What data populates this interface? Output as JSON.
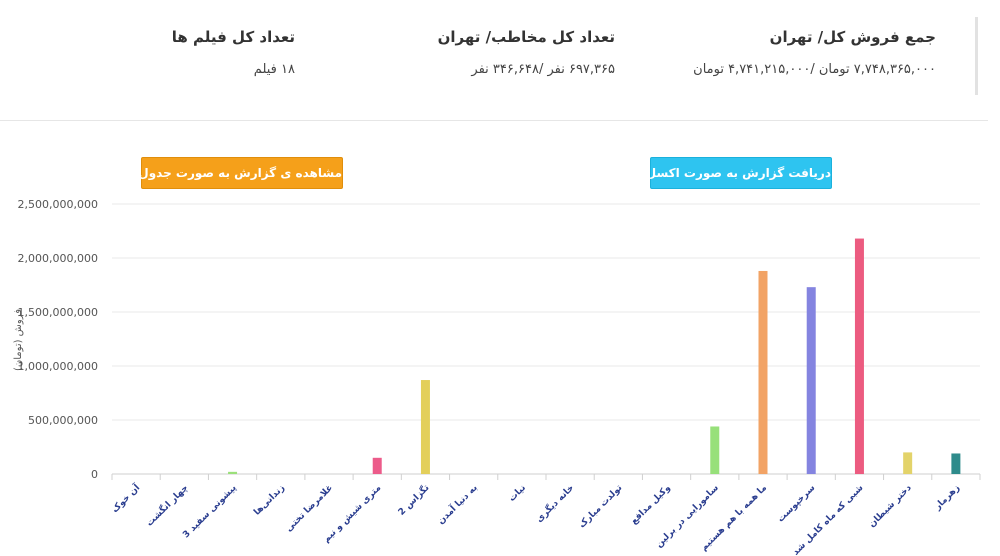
{
  "stats": {
    "sales": {
      "title": "جمع فروش کل/ تهران",
      "value": "۷,۷۴۸,۳۶۵,۰۰۰ تومان /۴,۷۴۱,۲۱۵,۰۰۰ تومان"
    },
    "audience": {
      "title": "تعداد کل مخاطب/ تهران",
      "value": "۶۹۷,۳۶۵ نفر /۳۴۶,۶۴۸ نفر"
    },
    "films": {
      "title": "تعداد کل فیلم ها",
      "value": "۱۸ فیلم"
    }
  },
  "buttons": {
    "excel": "دریافت گزارش به صورت اکسل",
    "table": "مشاهده ی گزارش به صورت جدول"
  },
  "chart_data": {
    "type": "bar",
    "ylabel": "فروش (تومان)",
    "ylim": [
      0,
      2500000000
    ],
    "yticks": [
      "0",
      "500,000,000",
      "1,000,000,000",
      "1,500,000,000",
      "2,000,000,000",
      "2,500,000,000"
    ],
    "ytick_values": [
      0,
      500000000,
      1000000000,
      1500000000,
      2000000000,
      2500000000
    ],
    "grid": true,
    "categories": [
      "آن خوک",
      "چهار انگشت",
      "پیشونی سفید 3",
      "زندانی‌ها",
      "غلامرضا تختی",
      "مترى شيش و نيم",
      "تگزاس 2",
      "به دنیا آمدن",
      "نیات",
      "خانه دیگری",
      "تولدت مبارک",
      "وکیل مدافع",
      "سامورایی در برلین",
      "ما همه با هم هستیم",
      "سرخپوست",
      "شبی که ماه کامل شد",
      "دختر شیطان",
      "زهرمار"
    ],
    "values": [
      0,
      0,
      20000000,
      0,
      0,
      150000000,
      870000000,
      0,
      0,
      0,
      0,
      0,
      440000000,
      1880000000,
      1730000000,
      2180000000,
      200000000,
      190000000
    ],
    "colors": [
      "#4dc9c0",
      "#ff8fa3",
      "#9be07a",
      "#ffcf5c",
      "#7f7fe0",
      "#ec5b8a",
      "#e3cf5a",
      "#4cb8c4",
      "#f7a35c",
      "#9b8be0",
      "#f45b5b",
      "#aee05c",
      "#97e07a",
      "#f2a365",
      "#8484e0",
      "#ec5b80",
      "#e3d36a",
      "#2e8b8b"
    ]
  }
}
